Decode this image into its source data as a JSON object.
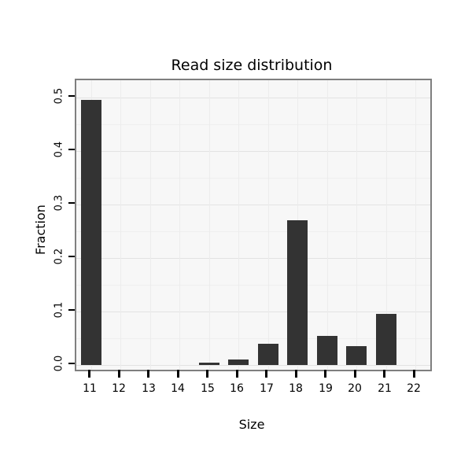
{
  "chart_data": {
    "type": "bar",
    "title": "Read size distribution",
    "xlabel": "Size",
    "ylabel": "Fraction",
    "categories": [
      "11",
      "12",
      "13",
      "14",
      "15",
      "16",
      "17",
      "18",
      "19",
      "20",
      "21",
      "22"
    ],
    "values": [
      0.495,
      0,
      0,
      0,
      0.005,
      0.01,
      0.04,
      0.27,
      0.055,
      0.035,
      0.095,
      0
    ],
    "ylim": [
      0,
      0.5
    ],
    "yticks": [
      0.0,
      0.1,
      0.2,
      0.3,
      0.4,
      0.5
    ],
    "ytick_labels": [
      "0.0",
      "0.1",
      "0.2",
      "0.3",
      "0.4",
      "0.5"
    ],
    "grid": true,
    "legend": "none",
    "bar_color": "#333333",
    "panel_bg": "#f7f7f7",
    "panel_border": "#7f7f7f"
  }
}
